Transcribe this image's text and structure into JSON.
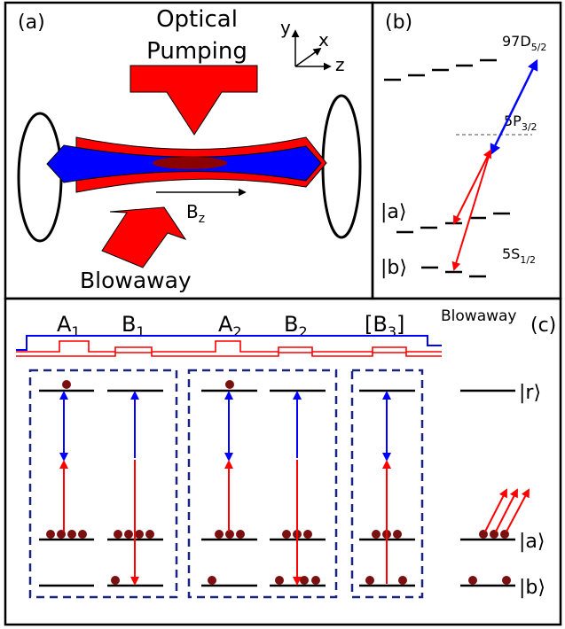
{
  "panel_a": {
    "label": "(a)",
    "optical_line1": "Optical",
    "optical_line2": "Pumping",
    "axis_y": "y",
    "axis_x": "x",
    "axis_z": "z",
    "field_label": "B",
    "field_sub": "z",
    "blowaway": "Blowaway"
  },
  "panel_b": {
    "label": "(b)",
    "level_97d": "97D",
    "level_97d_sub": "5/2",
    "level_5p": "5P",
    "level_5p_sub": "3/2",
    "level_5s": "5S",
    "level_5s_sub": "1/2",
    "ket_a": "|a⟩",
    "ket_b": "|b⟩"
  },
  "panel_c": {
    "label": "(c)",
    "blowaway": "Blowaway",
    "pulse_labels": [
      {
        "main": "A",
        "sub": "1"
      },
      {
        "main": "B",
        "sub": "1"
      },
      {
        "main": "A",
        "sub": "2"
      },
      {
        "main": "B",
        "sub": "2"
      },
      {
        "main": "[B",
        "sub": "3",
        "tail": "]"
      }
    ],
    "ket_r": "|r⟩",
    "ket_a": "|a⟩",
    "ket_b": "|b⟩"
  },
  "colors": {
    "red": "#ff0000",
    "blue": "#0000ff",
    "navy": "#1a237e",
    "atom": "#7b1010",
    "dark_red": "#8b0000"
  }
}
